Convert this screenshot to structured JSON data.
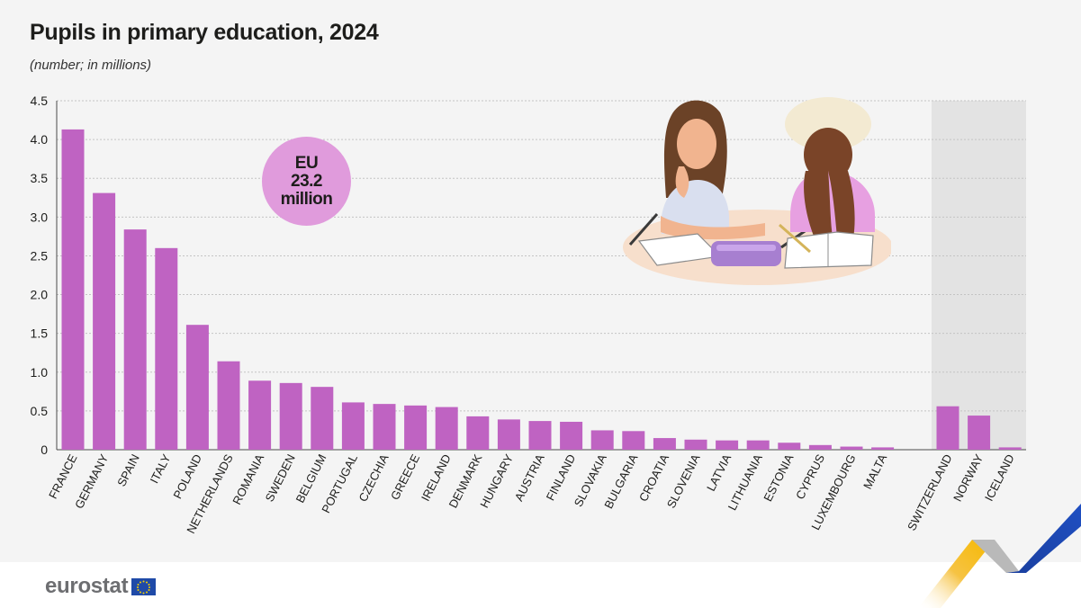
{
  "title": "Pupils in primary education, 2024",
  "subtitle": "(number; in millions)",
  "eu_badge": {
    "line1": "EU",
    "line2": "23.2",
    "line3": "million"
  },
  "logo": {
    "text": "eurostat"
  },
  "colors": {
    "bar": "#bf63c2",
    "badge": "#e09bdc",
    "shade": "#e3e3e3",
    "background": "#f4f4f4"
  },
  "chart_data": {
    "type": "bar",
    "title": "Pupils in primary education, 2024",
    "ylabel": "",
    "xlabel": "",
    "ylim": [
      0,
      4.5
    ],
    "yticks": [
      "0",
      "0.5",
      "1.0",
      "1.5",
      "2.0",
      "2.5",
      "3.0",
      "3.5",
      "4.0",
      "4.5"
    ],
    "grid": true,
    "categories": [
      "FRANCE",
      "GERMANY",
      "SPAIN",
      "ITALY",
      "POLAND",
      "NETHERLANDS",
      "ROMANIA",
      "SWEDEN",
      "BELGIUM",
      "PORTUGAL",
      "CZECHIA",
      "GREECE",
      "IRELAND",
      "DENMARK",
      "HUNGARY",
      "AUSTRIA",
      "FINLAND",
      "SLOVAKIA",
      "BULGARIA",
      "CROATIA",
      "SLOVENIA",
      "LATVIA",
      "LITHUANIA",
      "ESTONIA",
      "CYPRUS",
      "LUXEMBOURG",
      "MALTA",
      "SWITZERLAND",
      "NORWAY",
      "ICELAND"
    ],
    "values": [
      4.13,
      3.31,
      2.84,
      2.6,
      1.61,
      1.14,
      0.89,
      0.86,
      0.81,
      0.61,
      0.59,
      0.57,
      0.55,
      0.43,
      0.39,
      0.37,
      0.36,
      0.25,
      0.24,
      0.15,
      0.13,
      0.12,
      0.12,
      0.09,
      0.06,
      0.04,
      0.03,
      0.56,
      0.44,
      0.03
    ],
    "shaded_group": [
      "SWITZERLAND",
      "NORWAY",
      "ICELAND"
    ]
  }
}
